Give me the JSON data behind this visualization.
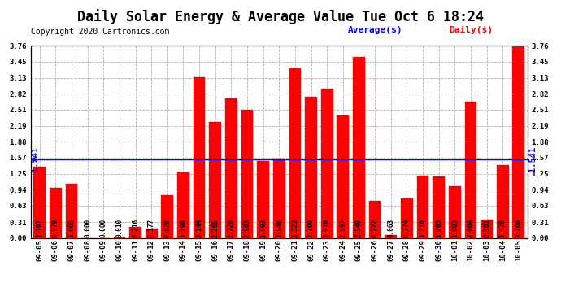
{
  "title": "Daily Solar Energy & Average Value Tue Oct 6 18:24",
  "copyright": "Copyright 2020 Cartronics.com",
  "legend_avg": "Average($)",
  "legend_daily": "Daily($)",
  "average_value": 1.541,
  "categories": [
    "09-05",
    "09-06",
    "09-07",
    "09-08",
    "09-09",
    "09-10",
    "09-11",
    "09-12",
    "09-13",
    "09-14",
    "09-15",
    "09-16",
    "09-17",
    "09-18",
    "09-19",
    "09-20",
    "09-21",
    "09-22",
    "09-23",
    "09-24",
    "09-25",
    "09-26",
    "09-27",
    "09-28",
    "09-29",
    "09-30",
    "10-01",
    "10-02",
    "10-03",
    "10-04",
    "10-05"
  ],
  "values": [
    1.397,
    0.979,
    1.065,
    0.0,
    0.0,
    0.01,
    0.216,
    0.177,
    0.828,
    1.288,
    3.144,
    2.265,
    2.726,
    2.503,
    1.503,
    1.548,
    3.323,
    2.769,
    2.919,
    2.397,
    3.54,
    0.722,
    0.063,
    0.774,
    1.21,
    1.203,
    1.003,
    2.664,
    0.361,
    1.42,
    3.76
  ],
  "bar_color": "#ff0000",
  "bar_edge_color": "#ff0000",
  "avg_line_color": "#0000ff",
  "background_color": "#ffffff",
  "grid_color": "#b0b0b0",
  "ylim": [
    0.0,
    3.76
  ],
  "yticks": [
    0.0,
    0.31,
    0.63,
    0.94,
    1.25,
    1.57,
    1.88,
    2.19,
    2.51,
    2.82,
    3.13,
    3.45,
    3.76
  ],
  "title_fontsize": 12,
  "copyright_fontsize": 7,
  "legend_fontsize": 8,
  "label_fontsize": 5.5,
  "tick_fontsize": 6.5,
  "avg_label": "1.541",
  "avg_label_color": "#0000ff",
  "avg_label_fontsize": 7.5
}
